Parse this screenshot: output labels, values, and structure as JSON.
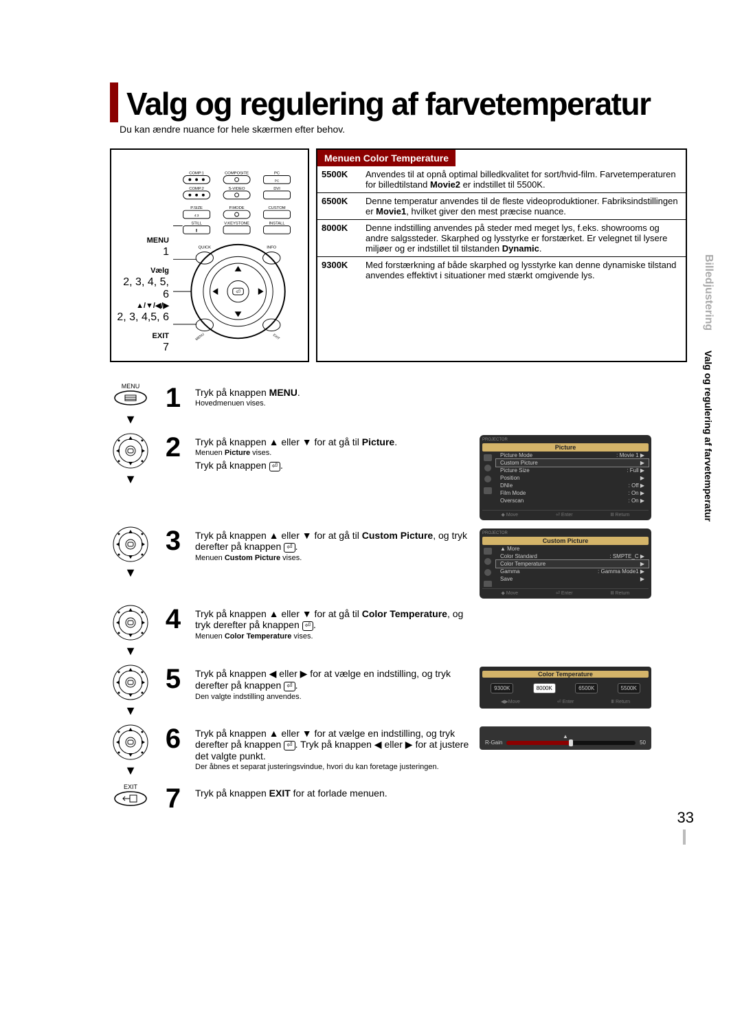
{
  "title": "Valg og regulering af farvetemperatur",
  "subtitle": "Du kan ændre nuance for hele skærmen efter behov.",
  "page_number": "33",
  "side_tab": {
    "section": "Billedjustering",
    "topic": "Valg og regulering af farvetemperatur"
  },
  "remote_legend": {
    "menu": "MENU",
    "menu_step": "1",
    "select": "Vælg",
    "select_step": "2, 3, 4, 5, 6",
    "arrows": "▲/▼/◀/▶",
    "arrows_step": "2, 3, 4,5, 6",
    "exit": "EXIT",
    "exit_step": "7"
  },
  "remote_buttons": {
    "row1": [
      "COMP.1",
      "COMPOSITE",
      "PC"
    ],
    "row2": [
      "COMP.2",
      "S-VIDEO",
      "DVI"
    ],
    "row3": [
      "P.SIZE",
      "P.MODE",
      "CUSTOM"
    ],
    "row4": [
      "STILL",
      "V.KEYSTONE",
      "INSTALL"
    ],
    "ring_left": "QUICK",
    "ring_right": "INFO",
    "ring_bl": "MENU",
    "ring_br": "EXIT"
  },
  "ct_header": "Menuen Color Temperature",
  "ct_rows": [
    {
      "k": "5500K",
      "v": "Anvendes til at opnå optimal billedkvalitet for sort/hvid-film. Farvetemperaturen for billedtilstand <b>Movie2</b> er indstillet til 5500K."
    },
    {
      "k": "6500K",
      "v": "Denne temperatur anvendes til de fleste videoproduktioner. Fabriksindstillingen er <b>Movie1</b>, hvilket giver den mest præcise nuance."
    },
    {
      "k": "8000K",
      "v": "Denne indstilling anvendes på steder med meget lys, f.eks. showrooms og andre salgssteder. Skarphed og lysstyrke er forstærket. Er velegnet til lysere miljøer og er indstillet til tilstanden <b>Dynamic</b>."
    },
    {
      "k": "9300K",
      "v": "Med forstærkning af både skarphed og lysstyrke kan denne dynamiske tilstand anvendes effektivt i situationer med stærkt omgivende lys."
    }
  ],
  "steps": [
    {
      "num": "1",
      "icon": "menu",
      "text": "Tryk på knappen <b>MENU</b>.",
      "sub": "Hovedmenuen vises."
    },
    {
      "num": "2",
      "icon": "dpad",
      "text": "Tryk på knappen ▲ eller ▼ for at gå til <b>Picture</b>.",
      "sub": "Menuen <b>Picture</b> vises.",
      "text2": "Tryk på knappen ⏎.",
      "osd": "picture"
    },
    {
      "num": "3",
      "icon": "dpad",
      "text": "Tryk på knappen ▲ eller ▼ for at gå til <b>Custom Picture</b>, og tryk derefter på knappen ⏎.",
      "sub": "Menuen <b>Custom Picture</b> vises.",
      "osd": "custom"
    },
    {
      "num": "4",
      "icon": "dpad",
      "text": "Tryk på knappen ▲ eller ▼ for at gå til <b>Color Temperature</b>, og tryk derefter på knappen ⏎.",
      "sub": "Menuen <b>Color Temperature</b> vises."
    },
    {
      "num": "5",
      "icon": "dpad",
      "text": "Tryk på knappen ◀ eller ▶ for at vælge en indstilling, og tryk derefter på knappen ⏎.",
      "sub": "Den valgte indstilling anvendes.",
      "osd": "ctstrip"
    },
    {
      "num": "6",
      "icon": "dpad",
      "text": "Tryk på knappen ▲ eller ▼ for at vælge en indstilling, og tryk derefter på knappen ⏎. Tryk på knappen ◀ eller ▶ for at justere det valgte punkt.",
      "sub": "Der åbnes et separat justeringsvindue, hvori du kan foretage justeringen.",
      "osd": "slider"
    },
    {
      "num": "7",
      "icon": "exit",
      "text": "Tryk på knappen <b>EXIT</b> for at forlade menuen."
    }
  ],
  "osd_picture": {
    "title": "Picture",
    "label": "PROJECTOR",
    "rows": [
      [
        "Picture Mode",
        ": Movie 1",
        "▶"
      ],
      [
        "Custom Picture",
        "",
        "▶"
      ],
      [
        "Picture Size",
        ": Full",
        "▶"
      ],
      [
        "Position",
        "",
        "▶"
      ],
      [
        "DNIe",
        ": Off",
        "▶"
      ],
      [
        "Film Mode",
        ": On",
        "▶"
      ],
      [
        "Overscan",
        ": On",
        "▶"
      ]
    ],
    "foot": [
      "◆ Move",
      "⏎ Enter",
      "Ⅲ Return"
    ],
    "highlight_index": 1
  },
  "osd_custom": {
    "title": "Custom Picture",
    "label": "PROJECTOR",
    "rows": [
      [
        "▲ More",
        "",
        ""
      ],
      [
        "Color Standard",
        ": SMPTE_C",
        "▶"
      ],
      [
        "Color Temperature",
        "",
        "▶"
      ],
      [
        "Gamma",
        ": Gamma Mode1",
        "▶"
      ],
      [
        "Save",
        "",
        "▶"
      ]
    ],
    "foot": [
      "◆ Move",
      "⏎ Enter",
      "Ⅲ Return"
    ],
    "highlight_index": 2
  },
  "osd_ctstrip": {
    "title": "Color Temperature",
    "options": [
      "9300K",
      "8000K",
      "6500K",
      "5500K"
    ],
    "selected_index": 1,
    "foot": [
      "◀▶Move",
      "⏎ Enter",
      "Ⅲ Return"
    ]
  },
  "osd_slider": {
    "label": "R-Gain",
    "value": "50",
    "fill_pct": 50
  }
}
